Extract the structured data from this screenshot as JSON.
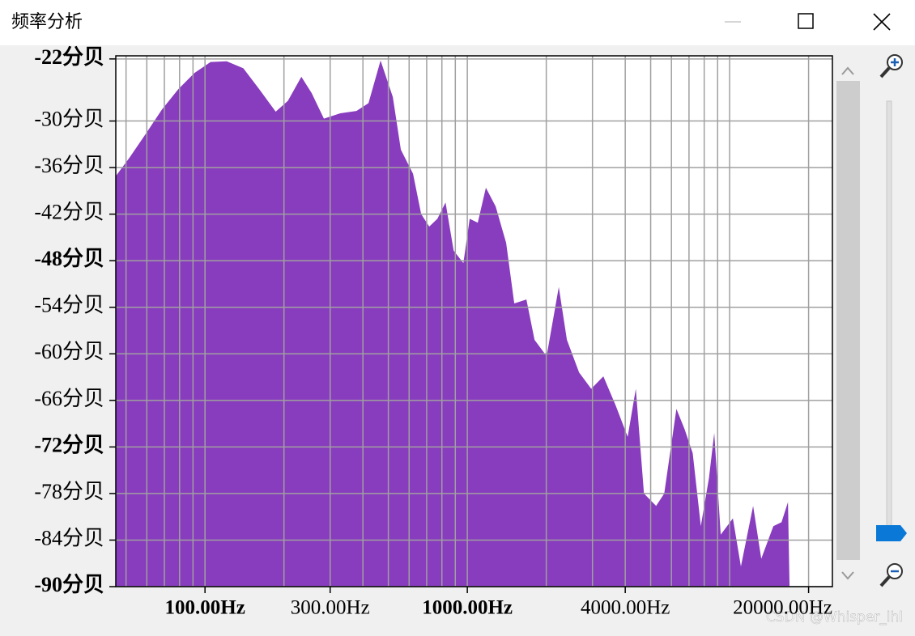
{
  "window": {
    "title": "频率分析"
  },
  "watermark": "CSDN @Whisper_lhl",
  "chart_data": {
    "type": "area",
    "log_x": true,
    "grid": true,
    "color": "#883cbe",
    "xlim": [
      45.7,
      24650
    ],
    "ylim": [
      -90,
      -21.6
    ],
    "xticks": [
      {
        "value": 100,
        "label": "100.00Hz",
        "bold": true
      },
      {
        "value": 300,
        "label": "300.00Hz"
      },
      {
        "value": 1000,
        "label": "1000.00Hz",
        "bold": true
      },
      {
        "value": 4000,
        "label": "4000.00Hz"
      },
      {
        "value": 20000,
        "label": "20000.00Hz"
      }
    ],
    "xgrid": [
      50,
      60,
      70,
      80,
      90,
      100,
      200,
      300,
      400,
      500,
      600,
      700,
      800,
      900,
      1000,
      2000,
      3000,
      4000,
      5000,
      6000,
      7000,
      8000,
      9000,
      10000,
      20000
    ],
    "yticks": [
      {
        "value": -22,
        "label": "-22分贝",
        "bold": true
      },
      {
        "value": -30,
        "label": "-30分贝"
      },
      {
        "value": -36,
        "label": "-36分贝"
      },
      {
        "value": -42,
        "label": "-42分贝"
      },
      {
        "value": -48,
        "label": "-48分贝",
        "bold": true
      },
      {
        "value": -54,
        "label": "-54分贝"
      },
      {
        "value": -60,
        "label": "-60分贝"
      },
      {
        "value": -66,
        "label": "-66分贝"
      },
      {
        "value": -72,
        "label": "-72分贝",
        "bold": true
      },
      {
        "value": -78,
        "label": "-78分贝"
      },
      {
        "value": -84,
        "label": "-84分贝"
      },
      {
        "value": -90,
        "label": "-90分贝",
        "bold": true
      }
    ],
    "x": [
      45.7,
      51.6,
      59.6,
      68.6,
      79.1,
      91.2,
      105,
      121,
      140,
      161,
      186,
      207,
      233,
      255,
      284,
      328,
      378,
      420,
      467,
      520,
      558,
      621,
      667,
      716,
      769,
      826,
      887,
      966,
      1021,
      1096,
      1177,
      1282,
      1406,
      1510,
      1680,
      1804,
      2006,
      2232,
      2397,
      2667,
      2967,
      3301,
      3673,
      4086,
      4389,
      4714,
      5245,
      5633,
      6268,
      6732,
      7231,
      7766,
      8341,
      8737,
      9247,
      10290,
      11040,
      12290,
      13200,
      14680,
      15770,
      16690,
      16920,
      24650
    ],
    "values": [
      -37.1,
      -34.7,
      -31.6,
      -28.5,
      -25.9,
      -23.8,
      -22.4,
      -22.3,
      -23.2,
      -25.9,
      -28.8,
      -27.4,
      -24.3,
      -26.4,
      -29.7,
      -29.0,
      -28.7,
      -27.7,
      -22.2,
      -26.9,
      -33.7,
      -36.8,
      -42.0,
      -43.6,
      -42.6,
      -40.5,
      -46.7,
      -48.3,
      -42.6,
      -43.1,
      -38.6,
      -41.0,
      -45.7,
      -53.5,
      -53.0,
      -58.2,
      -60.3,
      -51.4,
      -58.2,
      -62.4,
      -64.5,
      -62.9,
      -66.6,
      -70.7,
      -64.5,
      -78.0,
      -79.6,
      -78.0,
      -67.1,
      -69.7,
      -72.8,
      -82.2,
      -76.0,
      -70.2,
      -83.3,
      -81.2,
      -87.4,
      -79.6,
      -86.4,
      -82.2,
      -81.7,
      -79.1,
      -90,
      -90
    ]
  }
}
